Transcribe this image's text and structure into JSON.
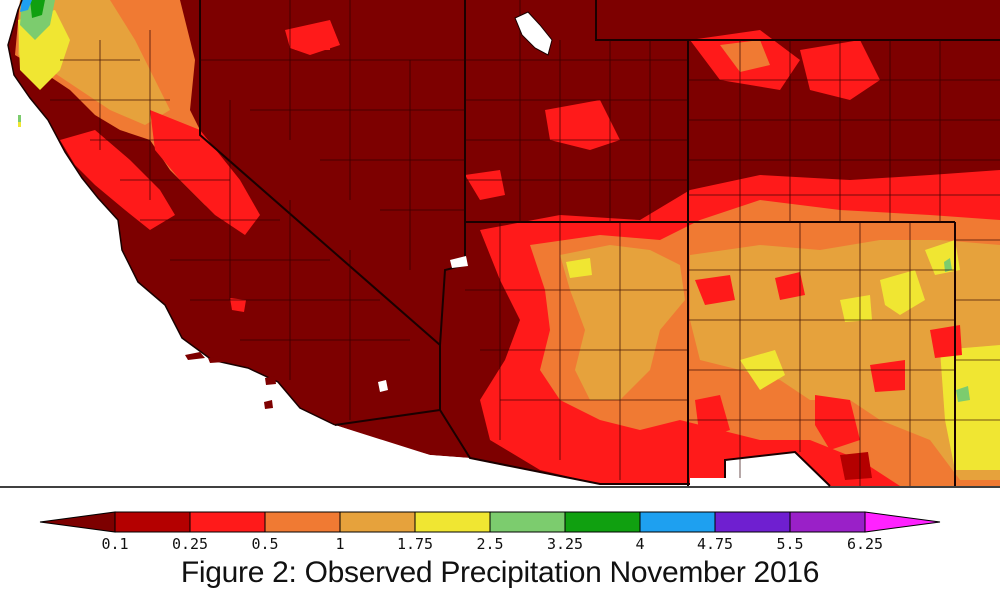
{
  "caption": "Figure 2: Observed Precipitation November 2016",
  "colors": {
    "ocean": "#ffffff",
    "base": "#7d0000",
    "bin_0": "#7d0000",
    "bin_1": "#b40000",
    "bin_2": "#ff1a1a",
    "bin_3": "#f07a33",
    "bin_4": "#e6a23c",
    "bin_5": "#f0e632",
    "bin_6": "#7ccc6e",
    "bin_7": "#10a010",
    "bin_8": "#1ea0f0",
    "bin_9": "#6f1fd0",
    "bin_10": "#9a20c8",
    "bin_11": "#c040c8",
    "bin_12": "#ff22ff",
    "boundary": "#1a0000"
  },
  "legend": {
    "units_note": "",
    "ticks": [
      "0.1",
      "0.25",
      "0.5",
      "1",
      "1.75",
      "2.5",
      "3.25",
      "4",
      "4.75",
      "5.5",
      "6.25"
    ],
    "bins": [
      {
        "range": "<0.1",
        "color": "#7d0000"
      },
      {
        "range": "0.1-0.25",
        "color": "#b40000"
      },
      {
        "range": "0.25-0.5",
        "color": "#ff1a1a"
      },
      {
        "range": "0.5-1",
        "color": "#f07a33"
      },
      {
        "range": "1-1.75",
        "color": "#e6a23c"
      },
      {
        "range": "1.75-2.5",
        "color": "#f0e632"
      },
      {
        "range": "2.5-3.25",
        "color": "#7ccc6e"
      },
      {
        "range": "3.25-4",
        "color": "#10a010"
      },
      {
        "range": "4-4.75",
        "color": "#1ea0f0"
      },
      {
        "range": "4.75-5.5",
        "color": "#6f1fd0"
      },
      {
        "range": "5.5-6.25",
        "color": "#9a20c8"
      },
      {
        "range": ">6.25",
        "color": "#ff22ff"
      }
    ]
  }
}
